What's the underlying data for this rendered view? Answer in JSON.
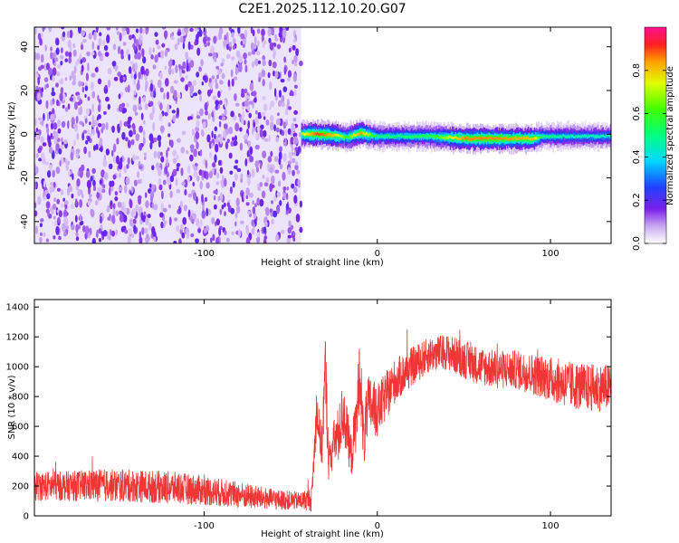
{
  "title": "C2E1.2025.112.10.20.G07",
  "chart_data": [
    {
      "type": "heatmap",
      "xlabel": "Height of straight line (km)",
      "ylabel": "Frequency (Hz)",
      "xlim": [
        -198,
        135
      ],
      "ylim": [
        -50,
        49
      ],
      "xticks": [
        -100,
        0,
        100
      ],
      "yticks": [
        -40,
        -20,
        0,
        20,
        40
      ],
      "colorbar": {
        "label": "Normalized spectral amplitude",
        "range": [
          0,
          1
        ],
        "ticks": [
          0.0,
          0.2,
          0.4,
          0.6,
          0.8
        ]
      },
      "noise_region_x": [
        -198,
        -44
      ],
      "signal_trace": {
        "x": [
          -44,
          -35,
          -25,
          -18,
          -10,
          0,
          10,
          30,
          50,
          70,
          90,
          95,
          110,
          135
        ],
        "freq": [
          0,
          0,
          -0.5,
          -1.5,
          0.5,
          -1,
          -1,
          -1,
          -2,
          -2,
          -2,
          -1,
          -1,
          -1
        ],
        "peak": [
          0.7,
          0.9,
          0.8,
          0.6,
          0.85,
          0.5,
          0.5,
          0.55,
          0.85,
          0.85,
          0.8,
          0.5,
          0.45,
          0.45
        ]
      }
    },
    {
      "type": "line",
      "xlabel": "Height of straight line (km)",
      "ylabel": "SNR (10 * v/v)",
      "xlim": [
        -198,
        135
      ],
      "ylim": [
        0,
        1450
      ],
      "xticks": [
        -100,
        0,
        100
      ],
      "yticks": [
        0,
        200,
        400,
        600,
        800,
        1000,
        1200,
        1400
      ],
      "color": "#f03535",
      "envelope": {
        "x": [
          -198,
          -180,
          -160,
          -140,
          -120,
          -100,
          -80,
          -60,
          -45,
          -38,
          -35,
          -32,
          -30,
          -28,
          -25,
          -22,
          -20,
          -18,
          -15,
          -12,
          -10,
          -8,
          -5,
          0,
          10,
          20,
          30,
          40,
          50,
          60,
          70,
          80,
          90,
          100,
          110,
          120,
          135
        ],
        "mean": [
          200,
          200,
          205,
          200,
          190,
          170,
          140,
          110,
          100,
          110,
          700,
          450,
          1000,
          350,
          500,
          550,
          700,
          600,
          400,
          650,
          1000,
          500,
          750,
          700,
          900,
          1000,
          1080,
          1100,
          1050,
          1000,
          980,
          980,
          950,
          920,
          880,
          860,
          860
        ],
        "spread": [
          100,
          100,
          110,
          110,
          110,
          100,
          90,
          70,
          60,
          80,
          150,
          150,
          250,
          150,
          150,
          200,
          200,
          180,
          150,
          200,
          250,
          200,
          200,
          180,
          150,
          130,
          120,
          120,
          130,
          130,
          130,
          130,
          140,
          150,
          160,
          160,
          160
        ]
      }
    }
  ]
}
